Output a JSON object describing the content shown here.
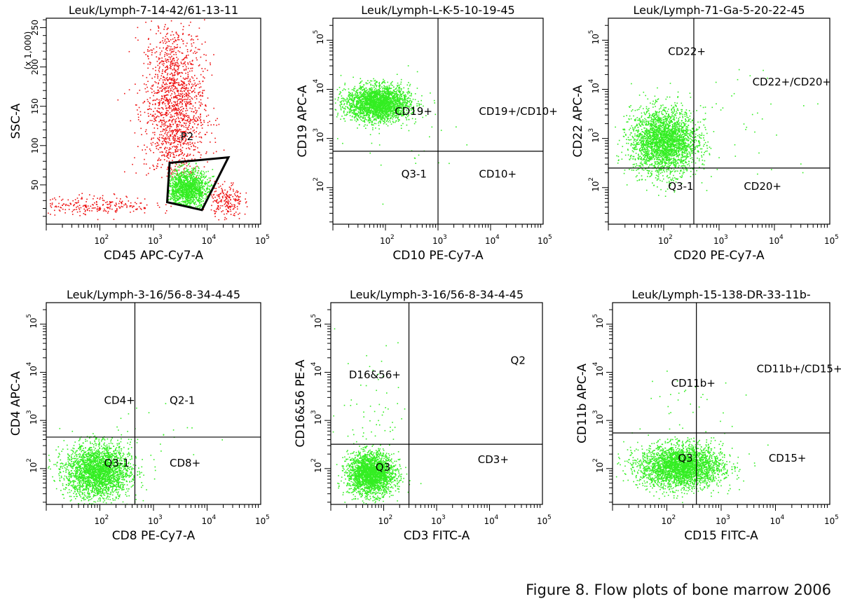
{
  "figure": {
    "caption": "Figure 8. Flow plots of bone marrow 2006"
  },
  "colors": {
    "dots_green": "#33ee22",
    "dots_red": "#ee1111",
    "axis": "#000000"
  },
  "chart_data": [
    {
      "type": "scatter",
      "title": "Leuk/Lymph-7-14-42/61-13-11",
      "xlabel": "CD45 APC-Cy7-A",
      "ylabel": "SSC-A",
      "yunit": "(x 1,000)",
      "xscale": "log",
      "xlim": [
        10,
        100000
      ],
      "yscale": "linear",
      "ylim": [
        0,
        262
      ],
      "xticks": [
        {
          "v": 100,
          "e": "2"
        },
        {
          "v": 1000,
          "e": "3"
        },
        {
          "v": 10000,
          "e": "4"
        },
        {
          "v": 100000,
          "e": "5"
        }
      ],
      "yticks": [
        50,
        100,
        150,
        200,
        250
      ],
      "gates": [
        {
          "name": "P2",
          "polygon": [
            [
              2000,
              78
            ],
            [
              25000,
              85
            ],
            [
              8000,
              18
            ],
            [
              1800,
              28
            ]
          ],
          "label_at": [
            3200,
            107
          ]
        }
      ],
      "populations": [
        {
          "color": "red",
          "n": 1500,
          "xlog": [
            3.38,
            0.28
          ],
          "y": [
            150,
            55
          ],
          "yrange": [
            60,
            262
          ]
        },
        {
          "color": "red",
          "n": 240,
          "xlog": [
            1.9,
            0.55
          ],
          "y": [
            25,
            6
          ],
          "yrange": [
            5,
            60
          ]
        },
        {
          "color": "red",
          "n": 200,
          "xlog": [
            4.35,
            0.15
          ],
          "y": [
            30,
            12
          ],
          "yrange": [
            5,
            80
          ]
        },
        {
          "color": "green",
          "n": 1400,
          "xlog": [
            3.62,
            0.2
          ],
          "y": [
            45,
            12
          ],
          "gate": "P2"
        }
      ]
    },
    {
      "type": "scatter",
      "title": "Leuk/Lymph-L-K-5-10-19-45",
      "xlabel": "CD10 PE-Cy7-A",
      "ylabel": "CD19 APC-A",
      "xscale": "log",
      "xlim": [
        10,
        100000
      ],
      "yscale": "log",
      "ylim": [
        18,
        280000
      ],
      "xticks": [
        {
          "v": 100,
          "e": "2"
        },
        {
          "v": 1000,
          "e": "3"
        },
        {
          "v": 10000,
          "e": "4"
        },
        {
          "v": 100000,
          "e": "5"
        }
      ],
      "yticks": [
        {
          "v": 100,
          "e": "2"
        },
        {
          "v": 1000,
          "e": "3"
        },
        {
          "v": 10000,
          "e": "4"
        },
        {
          "v": 100000,
          "e": "5"
        }
      ],
      "quadrant": {
        "x": 1000,
        "y": 550
      },
      "quadrant_labels": [
        {
          "text": "CD19+",
          "at": [
            150,
            3000
          ]
        },
        {
          "text": "CD19+/CD10+",
          "at": [
            6000,
            3000
          ]
        },
        {
          "text": "Q3-1",
          "at": [
            200,
            160
          ]
        },
        {
          "text": "CD10+",
          "at": [
            6000,
            160
          ]
        }
      ],
      "populations": [
        {
          "color": "green",
          "n": 2600,
          "xlog": [
            1.85,
            0.3
          ],
          "ylog": [
            3.72,
            0.18
          ]
        },
        {
          "color": "green",
          "n": 40,
          "xlog": [
            2.3,
            0.7
          ],
          "ylog": [
            3.1,
            0.6
          ]
        }
      ]
    },
    {
      "type": "scatter",
      "title": "Leuk/Lymph-71-Ga-5-20-22-45",
      "xlabel": "CD20 PE-Cy7-A",
      "ylabel": "CD22 APC-A",
      "xscale": "log",
      "xlim": [
        10,
        100000
      ],
      "yscale": "log",
      "ylim": [
        18,
        280000
      ],
      "xticks": [
        {
          "v": 100,
          "e": "2"
        },
        {
          "v": 1000,
          "e": "3"
        },
        {
          "v": 10000,
          "e": "4"
        },
        {
          "v": 100000,
          "e": "5"
        }
      ],
      "yticks": [
        {
          "v": 100,
          "e": "2"
        },
        {
          "v": 1000,
          "e": "3"
        },
        {
          "v": 10000,
          "e": "4"
        },
        {
          "v": 100000,
          "e": "5"
        }
      ],
      "quadrant": {
        "x": 350,
        "y": 250
      },
      "quadrant_labels": [
        {
          "text": "CD22+",
          "at": [
            120,
            50000
          ]
        },
        {
          "text": "CD22+/CD20+",
          "at": [
            4000,
            12000
          ]
        },
        {
          "text": "Q3-1",
          "at": [
            120,
            90
          ]
        },
        {
          "text": "CD20+",
          "at": [
            2800,
            90
          ]
        }
      ],
      "populations": [
        {
          "color": "green",
          "n": 2800,
          "xlog": [
            2.0,
            0.3
          ],
          "ylog": [
            2.95,
            0.33
          ]
        },
        {
          "color": "green",
          "n": 40,
          "xlog": [
            3.3,
            0.8
          ],
          "ylog": [
            3.3,
            0.7
          ]
        }
      ]
    },
    {
      "type": "scatter",
      "title": "Leuk/Lymph-3-16/56-8-34-4-45",
      "xlabel": "CD8 PE-Cy7-A",
      "ylabel": "CD4 APC-A",
      "xscale": "log",
      "xlim": [
        10,
        100000
      ],
      "yscale": "log",
      "ylim": [
        18,
        280000
      ],
      "xticks": [
        {
          "v": 100,
          "e": "2"
        },
        {
          "v": 1000,
          "e": "3"
        },
        {
          "v": 10000,
          "e": "4"
        },
        {
          "v": 100000,
          "e": "5"
        }
      ],
      "yticks": [
        {
          "v": 100,
          "e": "2"
        },
        {
          "v": 1000,
          "e": "3"
        },
        {
          "v": 10000,
          "e": "4"
        },
        {
          "v": 100000,
          "e": "5"
        }
      ],
      "quadrant": {
        "x": 450,
        "y": 450
      },
      "quadrant_labels": [
        {
          "text": "CD4+",
          "at": [
            120,
            2200
          ]
        },
        {
          "text": "Q2-1",
          "at": [
            2000,
            2200
          ]
        },
        {
          "text": "Q3-1",
          "at": [
            120,
            110
          ]
        },
        {
          "text": "CD8+",
          "at": [
            2000,
            110
          ]
        }
      ],
      "populations": [
        {
          "color": "green",
          "n": 2600,
          "xlog": [
            1.95,
            0.3
          ],
          "ylog": [
            1.95,
            0.28
          ]
        },
        {
          "color": "green",
          "n": 30,
          "xlog": [
            2.8,
            0.7
          ],
          "ylog": [
            2.6,
            0.5
          ]
        }
      ]
    },
    {
      "type": "scatter",
      "title": "Leuk/Lymph-3-16/56-8-34-4-45",
      "xlabel": "CD3 FITC-A",
      "ylabel": "CD16&56 PE-A",
      "xscale": "log",
      "xlim": [
        10,
        100000
      ],
      "yscale": "log",
      "ylim": [
        18,
        280000
      ],
      "xticks": [
        {
          "v": 100,
          "e": "2"
        },
        {
          "v": 1000,
          "e": "3"
        },
        {
          "v": 10000,
          "e": "4"
        },
        {
          "v": 100000,
          "e": "5"
        }
      ],
      "yticks": [
        {
          "v": 100,
          "e": "2"
        },
        {
          "v": 1000,
          "e": "3"
        },
        {
          "v": 10000,
          "e": "4"
        },
        {
          "v": 100000,
          "e": "5"
        }
      ],
      "quadrant": {
        "x": 300,
        "y": 320
      },
      "quadrant_labels": [
        {
          "text": "D16&56+",
          "at": [
            22,
            7500
          ]
        },
        {
          "text": "Q2",
          "at": [
            25000,
            15000
          ]
        },
        {
          "text": "Q3",
          "at": [
            70,
            90
          ]
        },
        {
          "text": "CD3+",
          "at": [
            6000,
            130
          ]
        }
      ],
      "populations": [
        {
          "color": "green",
          "n": 2400,
          "xlog": [
            1.75,
            0.22
          ],
          "ylog": [
            1.9,
            0.22
          ]
        },
        {
          "color": "green",
          "n": 70,
          "xlog": [
            1.8,
            0.35
          ],
          "ylog": [
            3.2,
            0.8
          ]
        }
      ]
    },
    {
      "type": "scatter",
      "title": "Leuk/Lymph-15-138-DR-33-11b-",
      "xlabel": "CD15 FITC-A",
      "ylabel": "CD11b APC-A",
      "xscale": "log",
      "xlim": [
        10,
        100000
      ],
      "yscale": "log",
      "ylim": [
        18,
        280000
      ],
      "xticks": [
        {
          "v": 100,
          "e": "2"
        },
        {
          "v": 1000,
          "e": "3"
        },
        {
          "v": 10000,
          "e": "4"
        },
        {
          "v": 100000,
          "e": "5"
        }
      ],
      "yticks": [
        {
          "v": 100,
          "e": "2"
        },
        {
          "v": 1000,
          "e": "3"
        },
        {
          "v": 10000,
          "e": "4"
        },
        {
          "v": 100000,
          "e": "5"
        }
      ],
      "quadrant": {
        "x": 350,
        "y": 550
      },
      "quadrant_labels": [
        {
          "text": "CD11b+",
          "at": [
            120,
            5000
          ]
        },
        {
          "text": "CD11b+/CD15+",
          "at": [
            4500,
            10000
          ]
        },
        {
          "text": "Q3",
          "at": [
            160,
            140
          ]
        },
        {
          "text": "CD15+",
          "at": [
            7500,
            140
          ]
        }
      ],
      "populations": [
        {
          "color": "green",
          "n": 3000,
          "xlog": [
            2.25,
            0.38
          ],
          "ylog": [
            2.05,
            0.22
          ]
        },
        {
          "color": "green",
          "n": 40,
          "xlog": [
            2.2,
            0.5
          ],
          "ylog": [
            3.1,
            0.6
          ]
        }
      ]
    }
  ]
}
